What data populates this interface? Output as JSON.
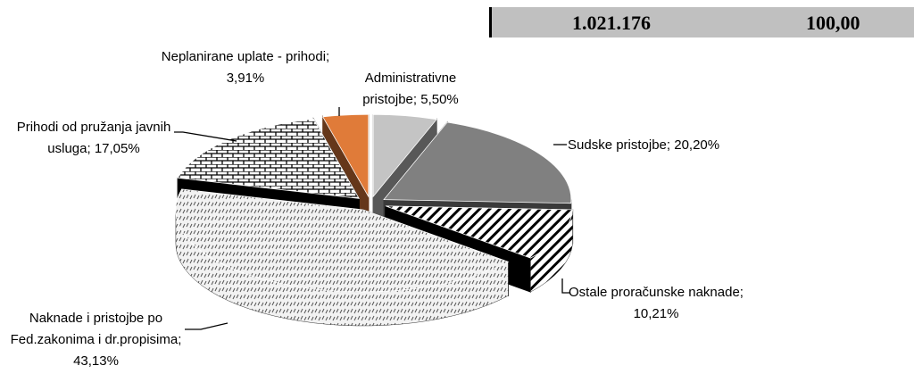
{
  "header": {
    "cells": [
      "1.021.176",
      "100,00"
    ]
  },
  "chart_data": {
    "type": "pie3d",
    "values": [
      5.5,
      20.2,
      10.21,
      43.13,
      17.05,
      3.91
    ],
    "value_labels": [
      "Administrativne pristojbe; 5,50%",
      "Sudske pristojbe; 20,20%",
      "Ostale proračunske naknade; 10,21%",
      "Naknade i pristojbe po Fed.zakonima i dr.propisima; 43,13%",
      "Prihodi od pružanja javnih usluga; 17,05%",
      "Neplanirane uplate - prihodi; 3,91%"
    ],
    "colors": [
      "#c4c4c4",
      "#808080",
      "#ffffff",
      "#e8e8e8",
      "#d0d0d0",
      "#e07b39"
    ],
    "patterns": [
      null,
      null,
      "diagonal",
      "dots",
      "brick",
      null
    ]
  }
}
